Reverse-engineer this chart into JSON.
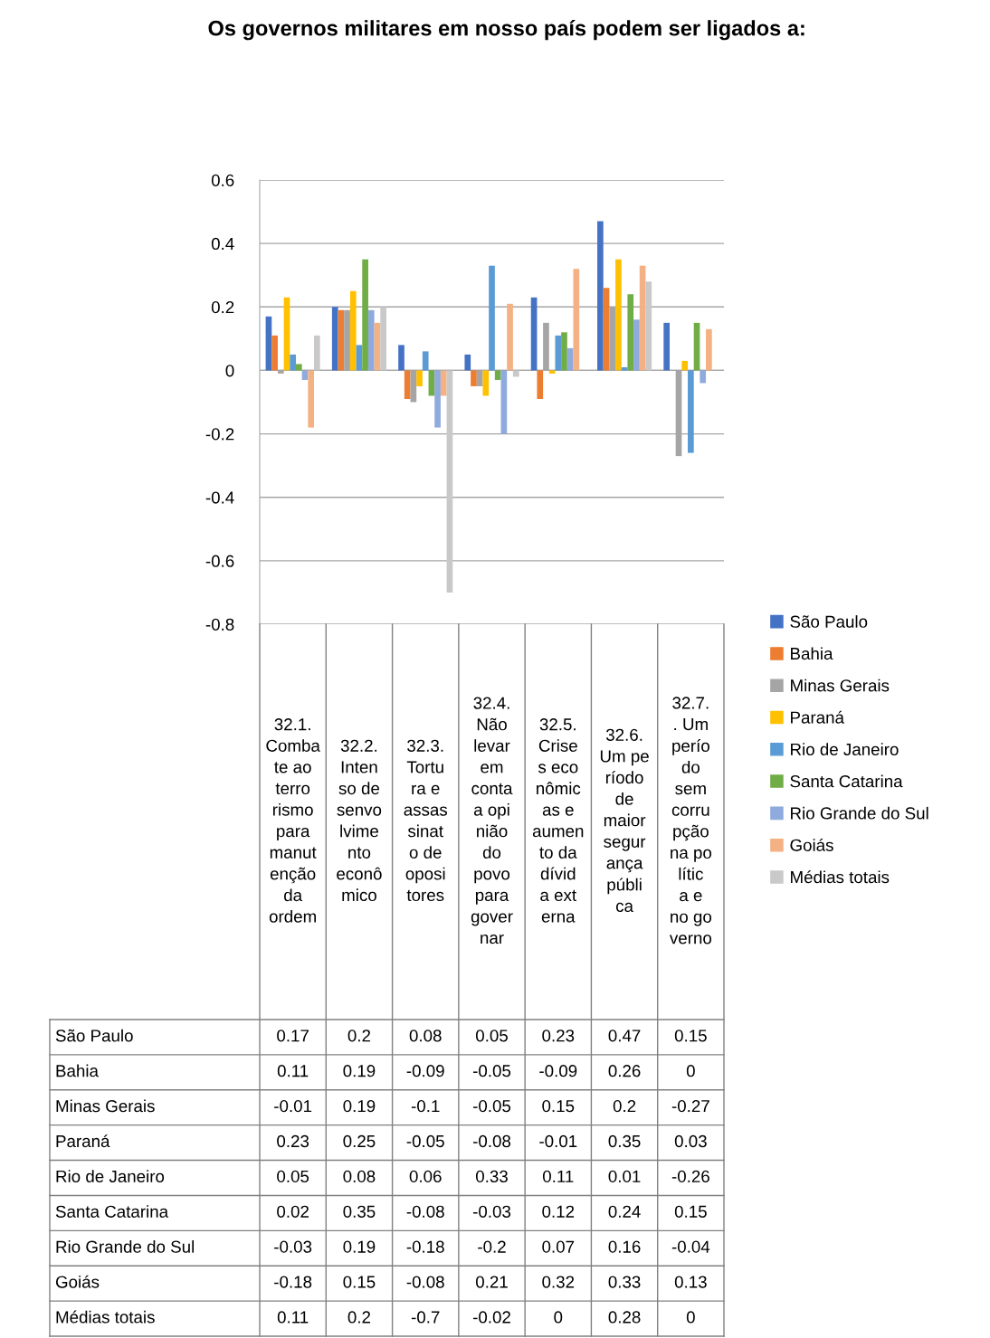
{
  "chart_data": {
    "type": "bar",
    "title": "Os governos militares em nosso país podem ser ligados a:",
    "categories": [
      "32.1. Combate ao terrorismo para manutenção da ordem",
      "32.2. Intenso desenvolvimento econômico",
      "32.3. Tortura e assassinato de opositores",
      "32.4. Não levar em conta a opinião do povo para governar",
      "32.5. Crises econômicas e aumento da dívida externa",
      "32.6. Um período de maior segurança pública",
      "32.7. . Um período sem corrupção na política e no governo"
    ],
    "series": [
      {
        "name": "São Paulo",
        "color": "#4472c4",
        "values": [
          0.17,
          0.2,
          0.08,
          0.05,
          0.23,
          0.47,
          0.15
        ]
      },
      {
        "name": "Bahia",
        "color": "#ed7d31",
        "values": [
          0.11,
          0.19,
          -0.09,
          -0.05,
          -0.09,
          0.26,
          0
        ]
      },
      {
        "name": "Minas Gerais",
        "color": "#a5a5a5",
        "values": [
          -0.01,
          0.19,
          -0.1,
          -0.05,
          0.15,
          0.2,
          -0.27
        ]
      },
      {
        "name": "Paraná",
        "color": "#ffc000",
        "values": [
          0.23,
          0.25,
          -0.05,
          -0.08,
          -0.01,
          0.35,
          0.03
        ]
      },
      {
        "name": "Rio de Janeiro",
        "color": "#5b9bd5",
        "values": [
          0.05,
          0.08,
          0.06,
          0.33,
          0.11,
          0.01,
          -0.26
        ]
      },
      {
        "name": "Santa Catarina",
        "color": "#70ad47",
        "values": [
          0.02,
          0.35,
          -0.08,
          -0.03,
          0.12,
          0.24,
          0.15
        ]
      },
      {
        "name": "Rio Grande do Sul",
        "color": "#8faadc",
        "values": [
          -0.03,
          0.19,
          -0.18,
          -0.2,
          0.07,
          0.16,
          -0.04
        ]
      },
      {
        "name": "Goiás",
        "color": "#f4b183",
        "values": [
          -0.18,
          0.15,
          -0.08,
          0.21,
          0.32,
          0.33,
          0.13
        ]
      },
      {
        "name": "Médias totais",
        "color": "#c9c9c9",
        "values": [
          0.11,
          0.2,
          -0.7,
          -0.02,
          0,
          0.28,
          0
        ]
      }
    ],
    "ylim": [
      -0.8,
      0.6
    ],
    "yticks": [
      -0.8,
      -0.6,
      -0.4,
      -0.2,
      0,
      0.2,
      0.4,
      0.6
    ],
    "grid": "y",
    "legend": "right",
    "data_labels": true
  }
}
